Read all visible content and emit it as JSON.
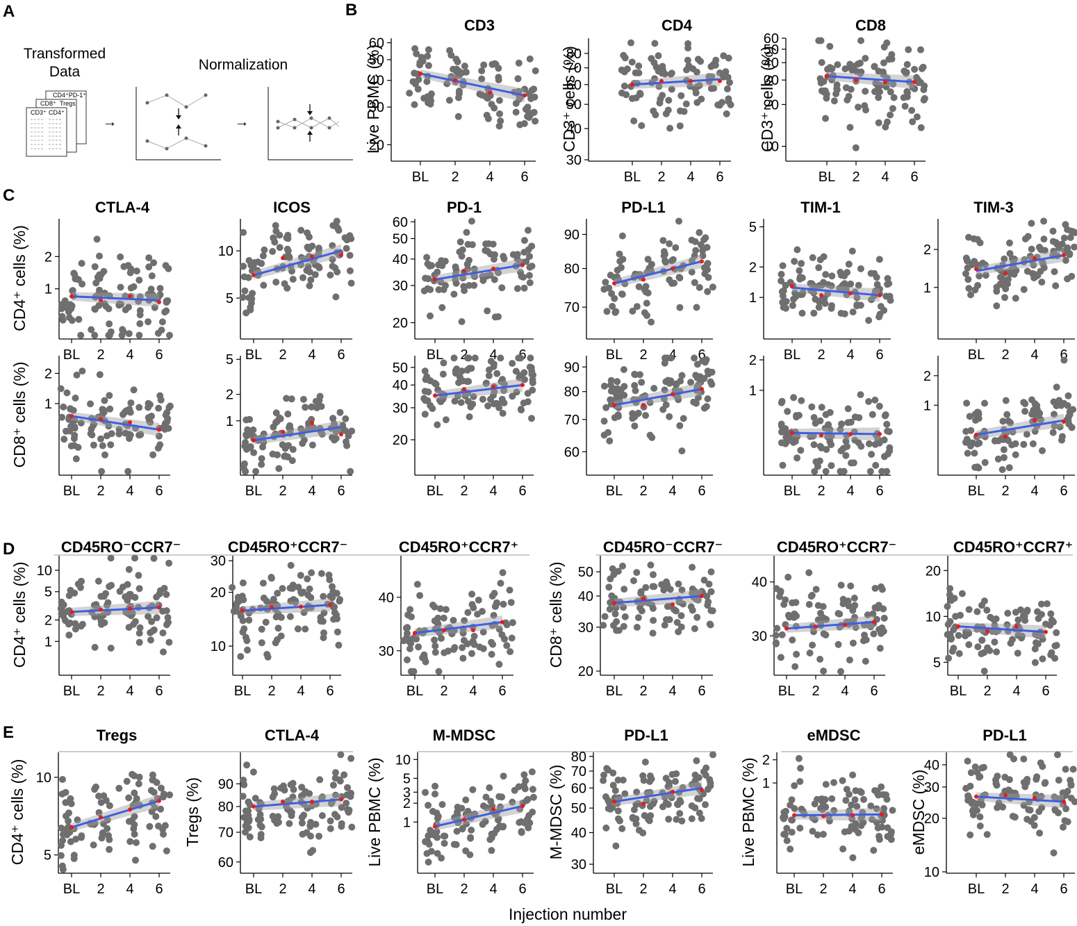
{
  "panel_letters": {
    "a": "A",
    "b": "B",
    "c": "C",
    "d": "D",
    "e": "E"
  },
  "schematic": {
    "title_line1": "Transformed",
    "title_line2": "Data",
    "normalization": "Normalization",
    "doc_back": "CD4⁺PD-1⁺",
    "doc_mid_1": "CD8⁺",
    "doc_mid_2": "Tregs",
    "doc_front_1": "CD3⁺",
    "doc_front_2": "CD4⁺",
    "arrow": "→"
  },
  "shared_x_label": "Injection number",
  "group_titles": {
    "d": [
      "CD45RO⁻CCR7⁻",
      "CD45RO⁺CCR7⁻",
      "CD45RO⁺CCR7⁺",
      "CD45RO⁻CCR7⁻",
      "CD45RO⁺CCR7⁻",
      "CD45RO⁺CCR7⁺"
    ],
    "e": [
      "Tregs",
      "CTLA-4",
      "M-MDSC",
      "PD-L1",
      "eMDSC",
      "PD-L1"
    ]
  },
  "chart_data": [
    {
      "type": "scatter",
      "panel": "B",
      "title": "CD3",
      "ylabel": "Live PBMC (%)",
      "xlabel": "",
      "categories": [
        "BL",
        "2",
        "4",
        "6"
      ],
      "scale": "log",
      "ylim": [
        17,
        63
      ],
      "yticks": [
        "20",
        "30",
        "40",
        "50",
        "60"
      ],
      "trend": [
        43,
        34
      ],
      "means": [
        43,
        40,
        35,
        34
      ]
    },
    {
      "type": "scatter",
      "panel": "B",
      "title": "CD4",
      "ylabel": "CD3⁺ cells (%)",
      "xlabel": "",
      "categories": [
        "BL",
        "2",
        "4",
        "6"
      ],
      "scale": "log",
      "ylim": [
        30,
        92
      ],
      "yticks": [
        "30",
        "40",
        "50",
        "60",
        "70",
        "80"
      ],
      "trend": [
        60,
        63
      ],
      "means": [
        60,
        62,
        62,
        62
      ]
    },
    {
      "type": "scatter",
      "panel": "B",
      "title": "CD8",
      "ylabel": "CD3⁺ cells (%)",
      "xlabel": "",
      "categories": [
        "BL",
        "2",
        "4",
        "6"
      ],
      "scale": "log",
      "ylim": [
        8,
        60
      ],
      "yticks": [
        "10",
        "20",
        "30",
        "40",
        "50",
        "60"
      ],
      "trend": [
        32,
        29
      ],
      "means": [
        32,
        30,
        29,
        29
      ]
    },
    {
      "type": "scatter",
      "panel": "C",
      "title": "CTLA-4",
      "ylabel": "CD4⁺ cells (%)",
      "xlabel": "",
      "categories": [
        "BL",
        "2",
        "4",
        "6"
      ],
      "scale": "log",
      "ylim": [
        0.35,
        4.5
      ],
      "yticks": [
        "1",
        "2"
      ],
      "trend": [
        0.85,
        0.78
      ],
      "means": [
        0.85,
        0.78,
        0.85,
        0.75
      ]
    },
    {
      "type": "scatter",
      "panel": "C",
      "title": "ICOS",
      "ylabel": "",
      "xlabel": "",
      "categories": [
        "BL",
        "2",
        "4",
        "6"
      ],
      "scale": "log",
      "ylim": [
        2.8,
        16
      ],
      "yticks": [
        "5",
        "10"
      ],
      "trend": [
        7,
        10
      ],
      "means": [
        7,
        9,
        9.2,
        9.4
      ]
    },
    {
      "type": "scatter",
      "panel": "C",
      "title": "PD-1",
      "ylabel": "",
      "xlabel": "",
      "categories": [
        "BL",
        "2",
        "4",
        "6"
      ],
      "scale": "log",
      "ylim": [
        17,
        62
      ],
      "yticks": [
        "20",
        "30",
        "40",
        "50",
        "60"
      ],
      "trend": [
        32,
        37.5
      ],
      "means": [
        32,
        35,
        36,
        37.5
      ]
    },
    {
      "type": "scatter",
      "panel": "C",
      "title": "PD-L1",
      "ylabel": "",
      "xlabel": "",
      "categories": [
        "BL",
        "2",
        "4",
        "6"
      ],
      "scale": "log",
      "ylim": [
        63,
        95
      ],
      "yticks": [
        "70",
        "80",
        "90"
      ],
      "trend": [
        76,
        82
      ],
      "means": [
        76,
        77,
        80,
        82
      ]
    },
    {
      "type": "scatter",
      "panel": "C",
      "title": "TIM-1",
      "ylabel": "",
      "xlabel": "",
      "categories": [
        "BL",
        "2",
        "4",
        "6"
      ],
      "scale": "log",
      "ylim": [
        0.4,
        6
      ],
      "yticks": [
        "1",
        "2",
        "5"
      ],
      "trend": [
        1.25,
        1.05
      ],
      "means": [
        1.3,
        1.05,
        1.1,
        1.05
      ]
    },
    {
      "type": "scatter",
      "panel": "C",
      "title": "TIM-3",
      "ylabel": "",
      "xlabel": "",
      "categories": [
        "BL",
        "2",
        "4",
        "6"
      ],
      "scale": "log",
      "ylim": [
        0.4,
        3.5
      ],
      "yticks": [
        "1",
        "2"
      ],
      "trend": [
        1.35,
        1.8
      ],
      "means": [
        1.4,
        1.3,
        1.7,
        1.8
      ]
    },
    {
      "type": "scatter",
      "panel": "C",
      "title": "",
      "ylabel": "CD8⁺ cells (%)",
      "xlabel": "",
      "categories": [
        "BL",
        "2",
        "4",
        "6"
      ],
      "scale": "log",
      "ylim": [
        0.2,
        3
      ],
      "yticks": [
        "1",
        "2"
      ],
      "trend": [
        0.75,
        0.55
      ],
      "means": [
        0.75,
        0.7,
        0.65,
        0.55
      ]
    },
    {
      "type": "scatter",
      "panel": "C",
      "title": "",
      "ylabel": "",
      "xlabel": "",
      "categories": [
        "BL",
        "2",
        "4",
        "6"
      ],
      "scale": "log",
      "ylim": [
        0.25,
        5.5
      ],
      "yticks": [
        "1",
        "2",
        "5"
      ],
      "trend": [
        0.6,
        0.85
      ],
      "means": [
        0.6,
        0.75,
        0.95,
        0.7
      ]
    },
    {
      "type": "scatter",
      "panel": "C",
      "title": "",
      "ylabel": "",
      "xlabel": "",
      "categories": [
        "BL",
        "2",
        "4",
        "6"
      ],
      "scale": "log",
      "ylim": [
        13,
        58
      ],
      "yticks": [
        "20",
        "30",
        "40",
        "50"
      ],
      "trend": [
        35,
        40
      ],
      "means": [
        35,
        38,
        39,
        40
      ]
    },
    {
      "type": "scatter",
      "panel": "C",
      "title": "",
      "ylabel": "",
      "xlabel": "",
      "categories": [
        "BL",
        "2",
        "4",
        "6"
      ],
      "scale": "log",
      "ylim": [
        54,
        95
      ],
      "yticks": [
        "60",
        "70",
        "80",
        "90"
      ],
      "trend": [
        75,
        81
      ],
      "means": [
        75,
        75,
        79,
        81
      ]
    },
    {
      "type": "scatter",
      "panel": "C",
      "title": "",
      "ylabel": "",
      "xlabel": "",
      "categories": [
        "BL",
        "2",
        "4",
        "6"
      ],
      "scale": "log",
      "ylim": [
        0.15,
        2.2
      ],
      "yticks": [
        "1",
        "2"
      ],
      "trend": [
        0.38,
        0.37
      ],
      "means": [
        0.38,
        0.36,
        0.37,
        0.37
      ]
    },
    {
      "type": "scatter",
      "panel": "C",
      "title": "",
      "ylabel": "",
      "xlabel": "",
      "categories": [
        "BL",
        "2",
        "4",
        "6"
      ],
      "scale": "log",
      "ylim": [
        0.2,
        3.2
      ],
      "yticks": [
        "1",
        "2"
      ],
      "trend": [
        0.5,
        0.7
      ],
      "means": [
        0.5,
        0.48,
        0.7,
        0.68
      ]
    },
    {
      "type": "scatter",
      "panel": "D",
      "title": "CD45RO⁻CCR7⁻",
      "ylabel": "CD4⁺ cells (%)",
      "xlabel": "",
      "categories": [
        "BL",
        "2",
        "4",
        "6"
      ],
      "scale": "log",
      "ylim": [
        0.35,
        16
      ],
      "yticks": [
        "1",
        "2",
        "5",
        "10"
      ],
      "trend": [
        2.6,
        3
      ],
      "means": [
        2.6,
        2.8,
        2.9,
        3
      ]
    },
    {
      "type": "scatter",
      "panel": "D",
      "title": "CD45RO⁺CCR7⁻",
      "ylabel": "",
      "xlabel": "",
      "categories": [
        "BL",
        "2",
        "4",
        "6"
      ],
      "scale": "log",
      "ylim": [
        7,
        32
      ],
      "yticks": [
        "10",
        "20",
        "30"
      ],
      "trend": [
        15.8,
        17
      ],
      "means": [
        15.8,
        16.5,
        16.6,
        17
      ]
    },
    {
      "type": "scatter",
      "panel": "D",
      "title": "CD45RO⁺CCR7⁺",
      "ylabel": "",
      "xlabel": "",
      "categories": [
        "BL",
        "2",
        "4",
        "6"
      ],
      "scale": "log",
      "ylim": [
        26.5,
        50
      ],
      "yticks": [
        "30",
        "40"
      ],
      "trend": [
        33,
        35
      ],
      "means": [
        33,
        33.5,
        33.5,
        35
      ]
    },
    {
      "type": "scatter",
      "panel": "D",
      "title": "CD45RO⁻CCR7⁻",
      "ylabel": "CD8⁺ cells (%)",
      "xlabel": "",
      "categories": [
        "BL",
        "2",
        "4",
        "6"
      ],
      "scale": "log",
      "ylim": [
        19.5,
        58
      ],
      "yticks": [
        "20",
        "30",
        "40",
        "50"
      ],
      "trend": [
        37.5,
        40
      ],
      "means": [
        37.5,
        39,
        37,
        40
      ]
    },
    {
      "type": "scatter",
      "panel": "D",
      "title": "CD45RO⁺CCR7⁻",
      "ylabel": "",
      "xlabel": "",
      "categories": [
        "BL",
        "2",
        "4",
        "6"
      ],
      "scale": "log",
      "ylim": [
        24.5,
        46
      ],
      "yticks": [
        "30",
        "40"
      ],
      "trend": [
        31.2,
        32.3
      ],
      "means": [
        31.2,
        31.5,
        31.8,
        32.3
      ]
    },
    {
      "type": "scatter",
      "panel": "D",
      "title": "CD45RO⁺CCR7⁺",
      "ylabel": "",
      "xlabel": "",
      "categories": [
        "BL",
        "2",
        "4",
        "6"
      ],
      "scale": "log",
      "ylim": [
        4.2,
        25
      ],
      "yticks": [
        "5",
        "10",
        "20"
      ],
      "trend": [
        8.6,
        7.9
      ],
      "means": [
        8.6,
        8,
        8.6,
        7.9
      ]
    },
    {
      "type": "scatter",
      "panel": "E",
      "title": "Tregs",
      "ylabel": "CD4⁺ cells (%)",
      "xlabel": "",
      "categories": [
        "BL",
        "2",
        "4",
        "6"
      ],
      "scale": "log",
      "ylim": [
        4.3,
        12.5
      ],
      "yticks": [
        "5",
        "10"
      ],
      "trend": [
        6.4,
        8.1
      ],
      "means": [
        6.4,
        7,
        7.5,
        8.1
      ]
    },
    {
      "type": "scatter",
      "panel": "E",
      "title": "CTLA-4",
      "ylabel": "Tregs (%)",
      "xlabel": "",
      "categories": [
        "BL",
        "2",
        "4",
        "6"
      ],
      "scale": "log",
      "ylim": [
        57,
        106
      ],
      "yticks": [
        "60",
        "70",
        "80",
        "90"
      ],
      "trend": [
        80,
        83
      ],
      "means": [
        80,
        82,
        82,
        83
      ]
    },
    {
      "type": "scatter",
      "panel": "E",
      "title": "M-MDSC",
      "ylabel": "Live PBMC (%)",
      "xlabel": "",
      "categories": [
        "BL",
        "2",
        "4",
        "6"
      ],
      "scale": "log",
      "ylim": [
        0.16,
        13
      ],
      "yticks": [
        "1",
        "2",
        "3",
        "5",
        "10"
      ],
      "trend": [
        0.85,
        1.8
      ],
      "means": [
        0.85,
        1.1,
        1.6,
        1.8
      ]
    },
    {
      "type": "scatter",
      "panel": "E",
      "title": "PD-L1",
      "ylabel": "M-MDSC (%)",
      "xlabel": "",
      "categories": [
        "BL",
        "2",
        "4",
        "6"
      ],
      "scale": "log",
      "ylim": [
        28,
        83
      ],
      "yticks": [
        "30",
        "40",
        "50",
        "60",
        "70",
        "80"
      ],
      "trend": [
        53,
        60
      ],
      "means": [
        53,
        52,
        58,
        59
      ]
    },
    {
      "type": "scatter",
      "panel": "E",
      "title": "eMDSC",
      "ylabel": "Live PBMC (%)",
      "xlabel": "",
      "categories": [
        "BL",
        "2",
        "4",
        "6"
      ],
      "scale": "log",
      "ylim": [
        0.07,
        2.5
      ],
      "yticks": [
        "1",
        "2"
      ],
      "trend": [
        0.38,
        0.39
      ],
      "means": [
        0.38,
        0.37,
        0.38,
        0.39
      ]
    },
    {
      "type": "scatter",
      "panel": "E",
      "title": "PD-L1",
      "ylabel": "eMDSC (%)",
      "xlabel": "",
      "categories": [
        "BL",
        "2",
        "4",
        "6"
      ],
      "scale": "log",
      "ylim": [
        10,
        47
      ],
      "yticks": [
        "10",
        "20",
        "30",
        "40"
      ],
      "trend": [
        26.5,
        24.8
      ],
      "means": [
        26.5,
        27,
        26,
        24.8
      ]
    }
  ]
}
